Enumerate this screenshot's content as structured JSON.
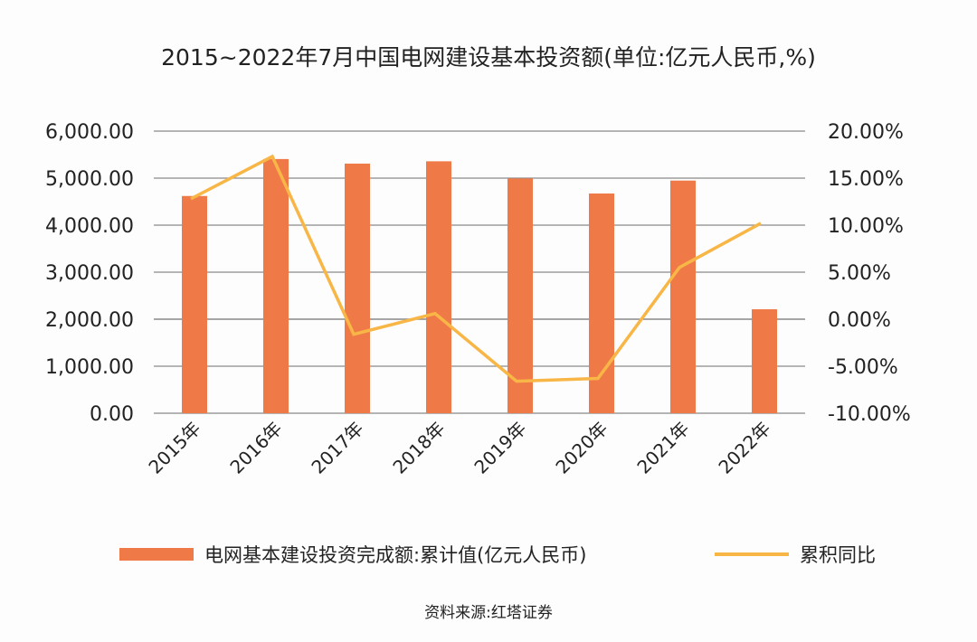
{
  "chart_data": {
    "type": "bar+line",
    "title": "2015~2022年7月中国电网建设基本投资额(单位:亿元人民币,%)",
    "categories": [
      "2015年",
      "2016年",
      "2017年",
      "2018年",
      "2019年",
      "2020年",
      "2021年",
      "2022年"
    ],
    "series": [
      {
        "name": "电网基本建设投资完成额:累计值(亿元人民币)",
        "type": "bar",
        "axis": "left",
        "color": "#EF7A48",
        "values": [
          4620,
          5406,
          5309,
          5358,
          4994,
          4673,
          4948,
          2211
        ]
      },
      {
        "name": "累积同比",
        "type": "line",
        "axis": "right",
        "color": "#F8B646",
        "values": [
          12.8,
          17.3,
          -1.6,
          0.6,
          -6.6,
          -6.3,
          5.5,
          10.2
        ]
      }
    ],
    "left_axis": {
      "ylim": [
        0,
        6000
      ],
      "ticks": [
        "0.00",
        "1,000.00",
        "2,000.00",
        "3,000.00",
        "4,000.00",
        "5,000.00",
        "6,000.00"
      ]
    },
    "right_axis": {
      "ylim": [
        -10,
        20
      ],
      "ticks": [
        "-10.00%",
        "-5.00%",
        "0.00%",
        "5.00%",
        "10.00%",
        "15.00%",
        "20.00%"
      ]
    },
    "grid": true,
    "legend": "bottom",
    "source": "资料来源:红塔证券"
  }
}
